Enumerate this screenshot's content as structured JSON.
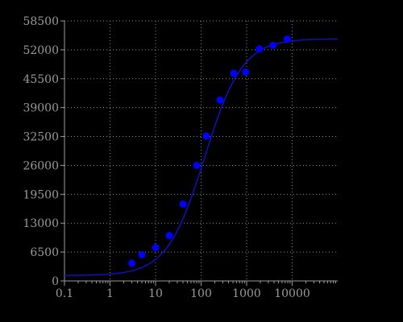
{
  "chart_data": {
    "type": "scatter",
    "title": "",
    "xlabel": "",
    "ylabel": "",
    "x_scale": "log",
    "xlim": [
      0.1,
      100000
    ],
    "ylim": [
      0,
      58500
    ],
    "x_ticks": [
      0.1,
      1,
      10,
      100,
      1000,
      10000
    ],
    "x_tick_labels": [
      "0.1",
      "1",
      "10",
      "100",
      "1000",
      "10000"
    ],
    "y_ticks": [
      0,
      6500,
      13000,
      19500,
      26000,
      32500,
      39000,
      45500,
      52000,
      58500
    ],
    "y_tick_labels": [
      "0",
      "6500",
      "13000",
      "19500",
      "26000",
      "32500",
      "39000",
      "45500",
      "52000",
      "58500"
    ],
    "grid": true,
    "legend": "none",
    "colors": {
      "background": "#000000",
      "axis": "#9a9a9a",
      "grid": "#8a8a8a",
      "points": "#0000ff",
      "curve": "#1010d0"
    },
    "series": [
      {
        "kind": "points",
        "x": [
          3,
          5,
          10,
          20,
          40,
          80,
          130,
          260,
          520,
          950,
          1900,
          3800,
          7800
        ],
        "y": [
          4000,
          5900,
          7500,
          10200,
          17300,
          26000,
          32600,
          40700,
          46700,
          47000,
          52200,
          53000,
          54400
        ]
      },
      {
        "kind": "fitted-curve",
        "model": "four-parameter-logistic",
        "bottom": 1200,
        "top": 54500,
        "ec50": 120,
        "hill": 1.05
      }
    ]
  }
}
